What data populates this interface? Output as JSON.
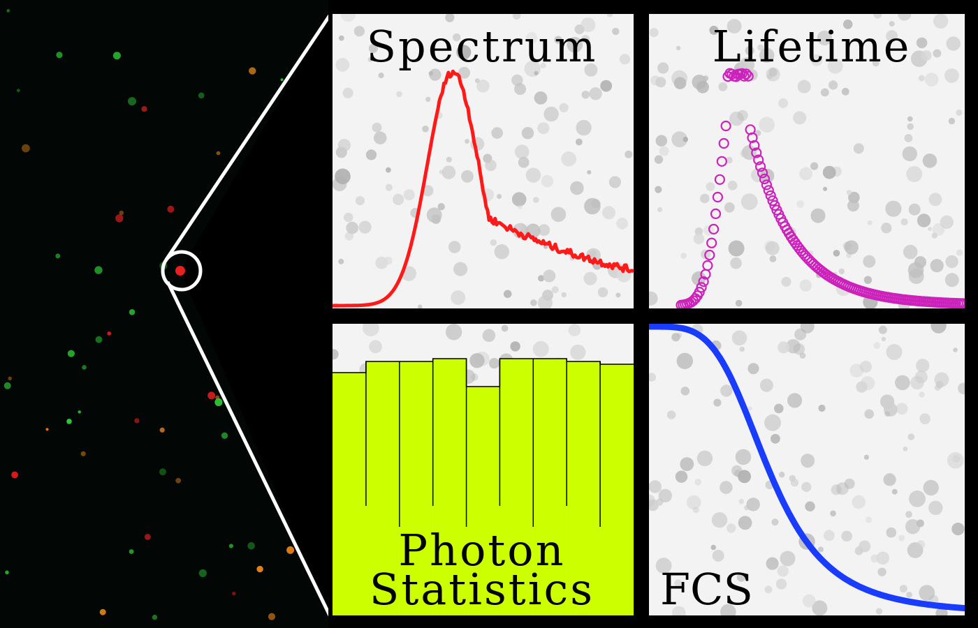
{
  "panels": {
    "spectrum": {
      "title": "Spectrum",
      "curve_color": "#ff1a1a"
    },
    "lifetime": {
      "title": "Lifetime",
      "marker_color": "#cc22bb"
    },
    "photon_statistics": {
      "title_line1": "Photon",
      "title_line2": "Statistics",
      "fill_color": "#ccff00",
      "bar_heights": [
        0.87,
        0.91,
        0.91,
        0.92,
        0.82,
        0.92,
        0.92,
        0.91,
        0.9
      ]
    },
    "fcs": {
      "title": "FCS",
      "curve_color": "#1a3cff"
    }
  },
  "chart_data": [
    {
      "type": "line",
      "title": "Spectrum",
      "x": [
        0,
        0.1,
        0.2,
        0.3,
        0.4,
        0.5,
        0.6,
        0.7,
        0.8,
        0.9,
        1.0
      ],
      "values": [
        0.0,
        0.05,
        0.3,
        0.85,
        0.95,
        0.62,
        0.45,
        0.3,
        0.22,
        0.14,
        0.08
      ]
    },
    {
      "type": "scatter",
      "title": "Lifetime",
      "x": [
        0,
        0.1,
        0.2,
        0.3,
        0.4,
        0.5,
        0.6,
        0.7,
        0.8,
        0.9,
        1.0
      ],
      "values": [
        0.0,
        0.45,
        0.88,
        0.99,
        0.78,
        0.5,
        0.28,
        0.14,
        0.07,
        0.03,
        0.01
      ]
    },
    {
      "type": "bar",
      "title": "Photon Statistics",
      "values": [
        0.87,
        0.91,
        0.91,
        0.92,
        0.82,
        0.92,
        0.92,
        0.91,
        0.9
      ]
    },
    {
      "type": "line",
      "title": "FCS",
      "x": [
        0,
        0.1,
        0.2,
        0.3,
        0.4,
        0.5,
        0.6,
        0.7,
        0.8,
        0.9,
        1.0
      ],
      "values": [
        1.0,
        0.96,
        0.86,
        0.68,
        0.45,
        0.24,
        0.1,
        0.03,
        0.01,
        0.0,
        0.0
      ]
    }
  ]
}
